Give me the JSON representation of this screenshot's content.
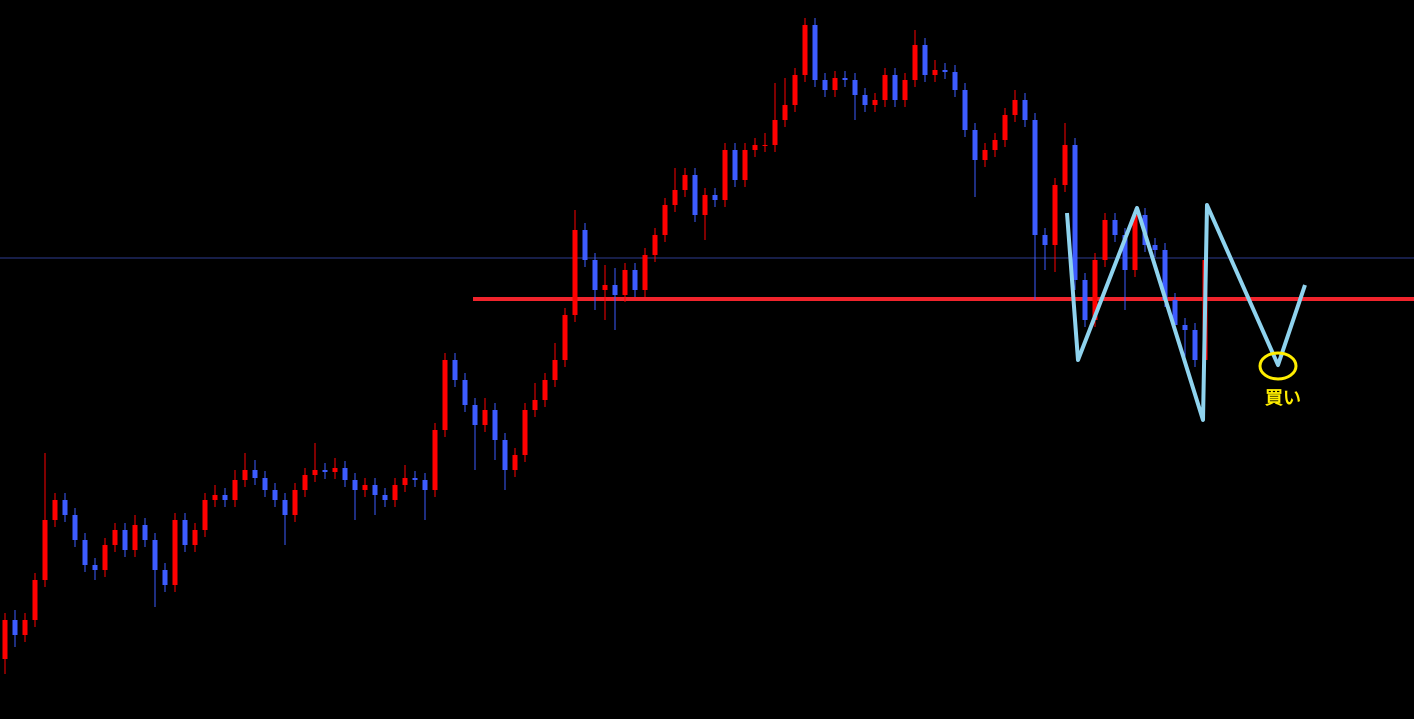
{
  "chart_data": {
    "type": "candlestick",
    "ylim": [
      0,
      719
    ],
    "up_color": "#ff0000",
    "down_color": "#3d5cff",
    "open": [
      60,
      99,
      84,
      99,
      139,
      199,
      219,
      204,
      179,
      154,
      149,
      174,
      189,
      169,
      194,
      179,
      149,
      134,
      199,
      174,
      189,
      219,
      224,
      219,
      239,
      249,
      241,
      229,
      219,
      204,
      229,
      244,
      249,
      247,
      251,
      239,
      229,
      234,
      224,
      219,
      234,
      241,
      239,
      229,
      289,
      359,
      339,
      314,
      294,
      309,
      279,
      249,
      264,
      309,
      319,
      339,
      359,
      404,
      489,
      459,
      429,
      434,
      424,
      449,
      429,
      464,
      484,
      514,
      529,
      544,
      504,
      524,
      519,
      569,
      539,
      569,
      574,
      574,
      599,
      614,
      644,
      694,
      639,
      629,
      641,
      639,
      624,
      614,
      619,
      644,
      619,
      639,
      674,
      644,
      649,
      647,
      629,
      589,
      559,
      569,
      579,
      604,
      619,
      599,
      484,
      474,
      534,
      574,
      439,
      399,
      459,
      499,
      484,
      449,
      504,
      474,
      469,
      419,
      394,
      389,
      359
    ],
    "high": [
      106,
      109,
      106,
      146,
      266,
      226,
      226,
      211,
      186,
      161,
      181,
      196,
      196,
      204,
      201,
      186,
      156,
      206,
      206,
      196,
      226,
      234,
      231,
      249,
      266,
      259,
      248,
      236,
      226,
      236,
      251,
      276,
      256,
      261,
      258,
      246,
      241,
      241,
      231,
      241,
      254,
      248,
      246,
      296,
      366,
      366,
      346,
      321,
      321,
      316,
      286,
      271,
      316,
      336,
      346,
      376,
      411,
      509,
      496,
      466,
      454,
      451,
      456,
      456,
      471,
      491,
      521,
      551,
      551,
      551,
      531,
      531,
      576,
      576,
      576,
      581,
      586,
      636,
      641,
      651,
      701,
      701,
      646,
      648,
      648,
      646,
      631,
      626,
      651,
      651,
      646,
      689,
      681,
      659,
      656,
      654,
      636,
      596,
      576,
      586,
      611,
      629,
      626,
      606,
      491,
      541,
      596,
      581,
      446,
      466,
      506,
      506,
      491,
      511,
      511,
      481,
      476,
      426,
      401,
      396,
      466
    ],
    "low": [
      45,
      72,
      77,
      92,
      132,
      192,
      197,
      172,
      147,
      139,
      142,
      167,
      162,
      162,
      172,
      112,
      127,
      127,
      167,
      167,
      182,
      212,
      212,
      212,
      232,
      234,
      222,
      212,
      174,
      197,
      222,
      237,
      240,
      240,
      232,
      199,
      222,
      204,
      212,
      212,
      227,
      232,
      199,
      222,
      282,
      332,
      307,
      249,
      287,
      259,
      229,
      242,
      257,
      302,
      312,
      332,
      352,
      397,
      452,
      409,
      399,
      389,
      417,
      422,
      422,
      457,
      477,
      507,
      522,
      497,
      479,
      512,
      512,
      532,
      532,
      562,
      567,
      567,
      592,
      607,
      637,
      632,
      622,
      622,
      632,
      599,
      607,
      607,
      612,
      612,
      612,
      632,
      637,
      637,
      640,
      622,
      582,
      522,
      552,
      562,
      572,
      597,
      592,
      419,
      449,
      447,
      527,
      429,
      392,
      392,
      452,
      477,
      409,
      442,
      467,
      462,
      412,
      387,
      359,
      352,
      352
    ],
    "close": [
      99,
      84,
      99,
      139,
      199,
      219,
      204,
      179,
      154,
      149,
      174,
      189,
      169,
      194,
      179,
      149,
      134,
      199,
      174,
      189,
      219,
      224,
      219,
      239,
      249,
      241,
      229,
      219,
      204,
      229,
      244,
      249,
      247,
      251,
      239,
      229,
      234,
      224,
      219,
      234,
      241,
      239,
      229,
      289,
      359,
      339,
      314,
      294,
      309,
      279,
      249,
      264,
      309,
      319,
      339,
      359,
      404,
      489,
      459,
      429,
      434,
      424,
      449,
      429,
      464,
      484,
      514,
      529,
      544,
      504,
      524,
      519,
      569,
      539,
      569,
      574,
      574,
      599,
      614,
      644,
      694,
      639,
      629,
      641,
      639,
      624,
      614,
      619,
      644,
      619,
      639,
      674,
      644,
      649,
      647,
      629,
      589,
      559,
      569,
      579,
      604,
      619,
      599,
      484,
      474,
      534,
      574,
      439,
      399,
      459,
      499,
      484,
      449,
      504,
      474,
      469,
      419,
      394,
      389,
      359,
      459
    ],
    "hlines": [
      {
        "value": 461,
        "color": "#2e3d8f"
      },
      {
        "value": 420,
        "color": "#f0242c"
      }
    ],
    "annotation": "買い"
  }
}
